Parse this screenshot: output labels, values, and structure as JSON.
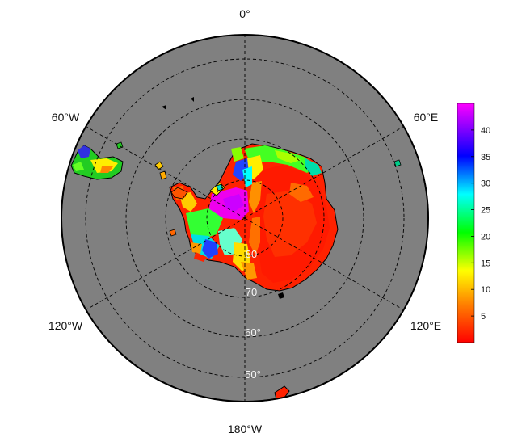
{
  "map": {
    "projection": "south-polar-stereographic",
    "ocean_color": "#808080",
    "background_color": "#ffffff",
    "graticule_style": "dashed",
    "longitude_labels": [
      "0°",
      "60°E",
      "120°E",
      "180°W",
      "120°W",
      "60°W"
    ],
    "latitude_labels": [
      "80",
      "70",
      "60°",
      "50°"
    ]
  },
  "colorbar": {
    "ticks": [
      "5",
      "10",
      "15",
      "20",
      "25",
      "30",
      "35",
      "40"
    ],
    "min": 0,
    "max": 45,
    "colors": [
      "#ff0000",
      "#ff8000",
      "#ffff00",
      "#00ff00",
      "#00ffff",
      "#0000ff",
      "#ff00ff"
    ]
  }
}
